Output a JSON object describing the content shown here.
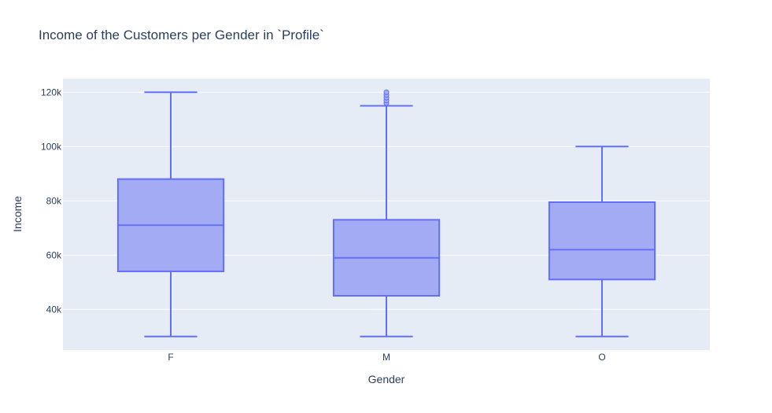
{
  "chart_data": {
    "type": "box",
    "title": "Income of the Customers per Gender in `Profile`",
    "xlabel": "Gender",
    "ylabel": "Income",
    "ylim": [
      25000,
      125000
    ],
    "yticks": [
      40000,
      60000,
      80000,
      100000,
      120000
    ],
    "ytick_labels": [
      "40k",
      "60k",
      "80k",
      "100k",
      "120k"
    ],
    "grid": true,
    "colors": {
      "plot_bg": "#e5ecf6",
      "grid": "#ffffff",
      "box_line": "#636efa",
      "box_fill": "#a4abf5"
    },
    "categories": [
      "F",
      "M",
      "O"
    ],
    "boxes": [
      {
        "category": "F",
        "lower_whisker": 30000,
        "q1": 54000,
        "median": 71000,
        "q3": 88000,
        "upper_whisker": 120000,
        "outliers": []
      },
      {
        "category": "M",
        "lower_whisker": 30000,
        "q1": 45000,
        "median": 59000,
        "q3": 73000,
        "upper_whisker": 115000,
        "outliers": [
          116000,
          117000,
          118000,
          119000,
          120000
        ]
      },
      {
        "category": "O",
        "lower_whisker": 30000,
        "q1": 51000,
        "median": 62000,
        "q3": 79500,
        "upper_whisker": 100000,
        "outliers": []
      }
    ]
  }
}
